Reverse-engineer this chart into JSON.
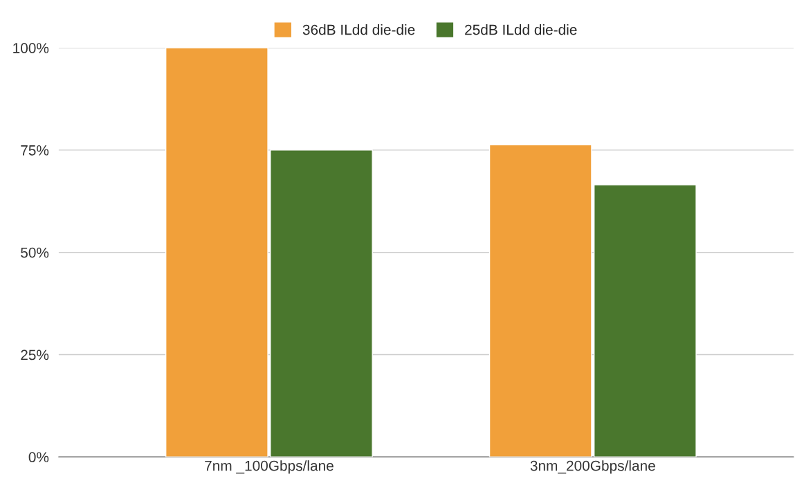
{
  "chart_data": {
    "type": "bar",
    "categories": [
      "7nm _100Gbps/lane",
      "3nm_200Gbps/lane"
    ],
    "series": [
      {
        "name": "36dB ILdd die-die",
        "color": "#f1a03a",
        "values": [
          100,
          76.3
        ]
      },
      {
        "name": "25dB ILdd die-die",
        "color": "#4a772d",
        "values": [
          75,
          66.5
        ]
      }
    ],
    "ylim": [
      0,
      100
    ],
    "yticks": [
      {
        "value": 0,
        "label": "0%"
      },
      {
        "value": 25,
        "label": "25%"
      },
      {
        "value": 50,
        "label": "50%"
      },
      {
        "value": 75,
        "label": "75%"
      },
      {
        "value": 100,
        "label": "100%"
      }
    ],
    "grid": "y",
    "legend": "top"
  }
}
